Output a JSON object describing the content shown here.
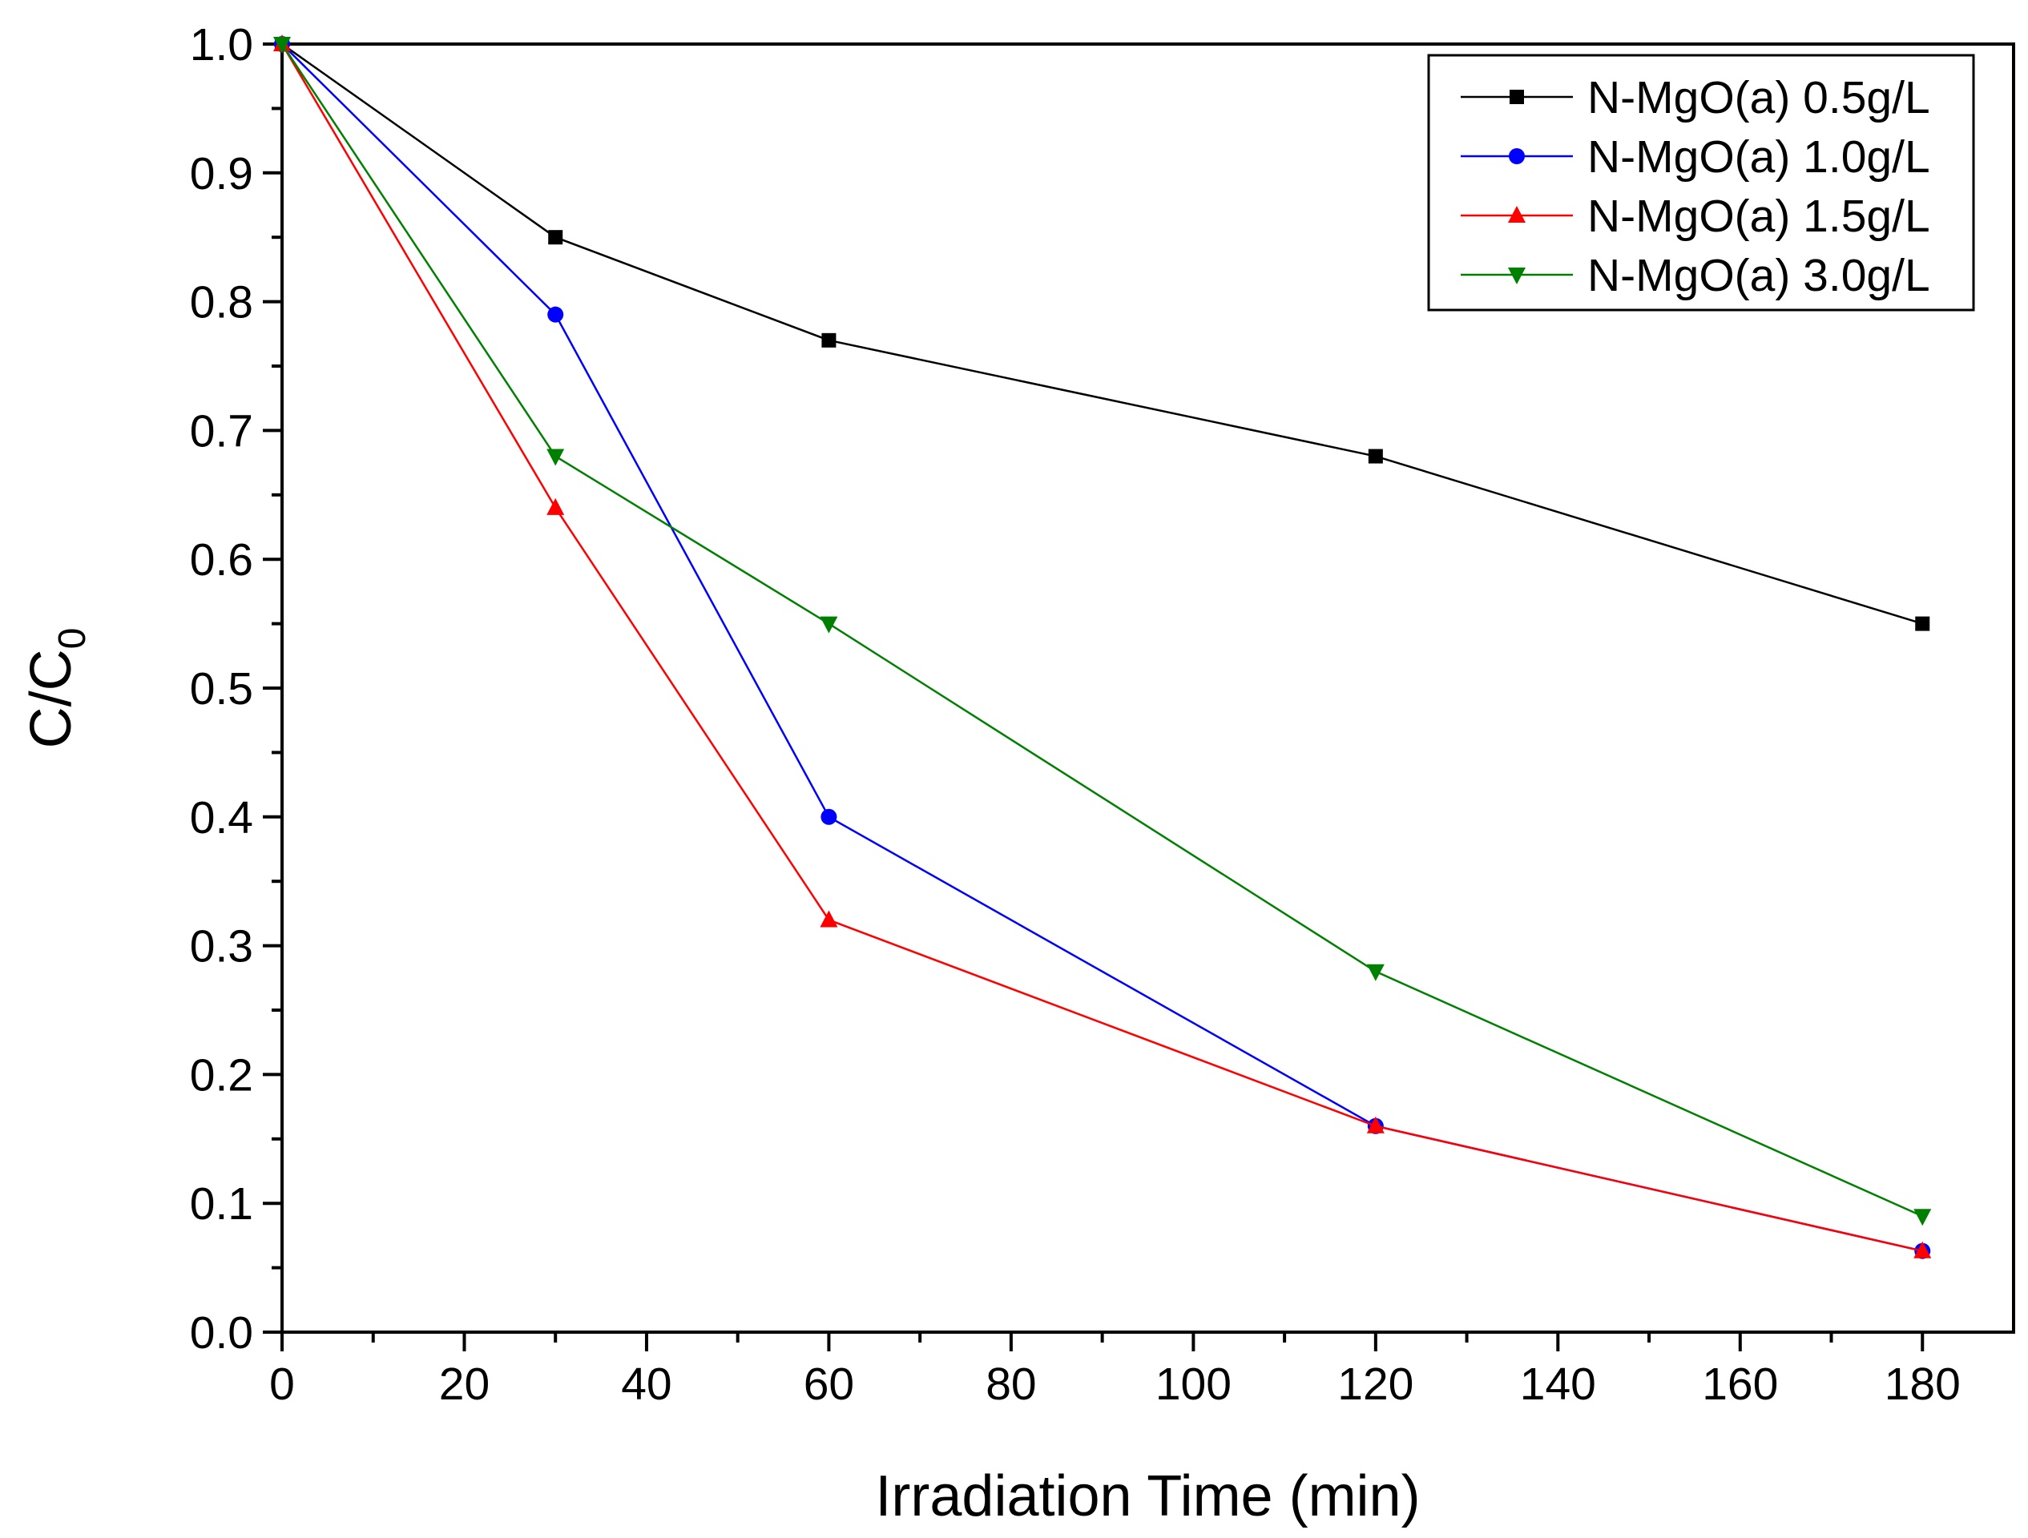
{
  "chart_data": {
    "type": "line",
    "xlabel": "Irradiation Time (min)",
    "ylabel": {
      "main": "C/C",
      "sub": "0"
    },
    "xlim": [
      0,
      190
    ],
    "ylim": [
      0,
      1.0
    ],
    "xticks": [
      0,
      20,
      40,
      60,
      80,
      100,
      120,
      140,
      160,
      180
    ],
    "xtick_labels": [
      "0",
      "20",
      "40",
      "60",
      "80",
      "100",
      "120",
      "140",
      "160",
      "180"
    ],
    "yticks": [
      0,
      0.1,
      0.2,
      0.3,
      0.4,
      0.5,
      0.6,
      0.7,
      0.8,
      0.9,
      1.0
    ],
    "ytick_labels": [
      "0.0",
      "0.1",
      "0.2",
      "0.3",
      "0.4",
      "0.5",
      "0.6",
      "0.7",
      "0.8",
      "0.9",
      "1.0"
    ],
    "grid": false,
    "legend_position": "top-right",
    "x": [
      0,
      30,
      60,
      120,
      180
    ],
    "series": [
      {
        "name": "N-MgO(a) 0.5g/L",
        "color": "#000000",
        "marker": "square",
        "values": [
          1.0,
          0.85,
          0.77,
          0.68,
          0.55
        ]
      },
      {
        "name": "N-MgO(a) 1.0g/L",
        "color": "#0000ff",
        "marker": "circle",
        "values": [
          1.0,
          0.79,
          0.4,
          0.16,
          0.063
        ]
      },
      {
        "name": "N-MgO(a) 1.5g/L",
        "color": "#ff0000",
        "marker": "triangle-up",
        "values": [
          1.0,
          0.64,
          0.32,
          0.16,
          0.063
        ]
      },
      {
        "name": "N-MgO(a) 3.0g/L",
        "color": "#008000",
        "marker": "triangle-down",
        "values": [
          1.0,
          0.68,
          0.55,
          0.28,
          0.09
        ]
      }
    ]
  }
}
